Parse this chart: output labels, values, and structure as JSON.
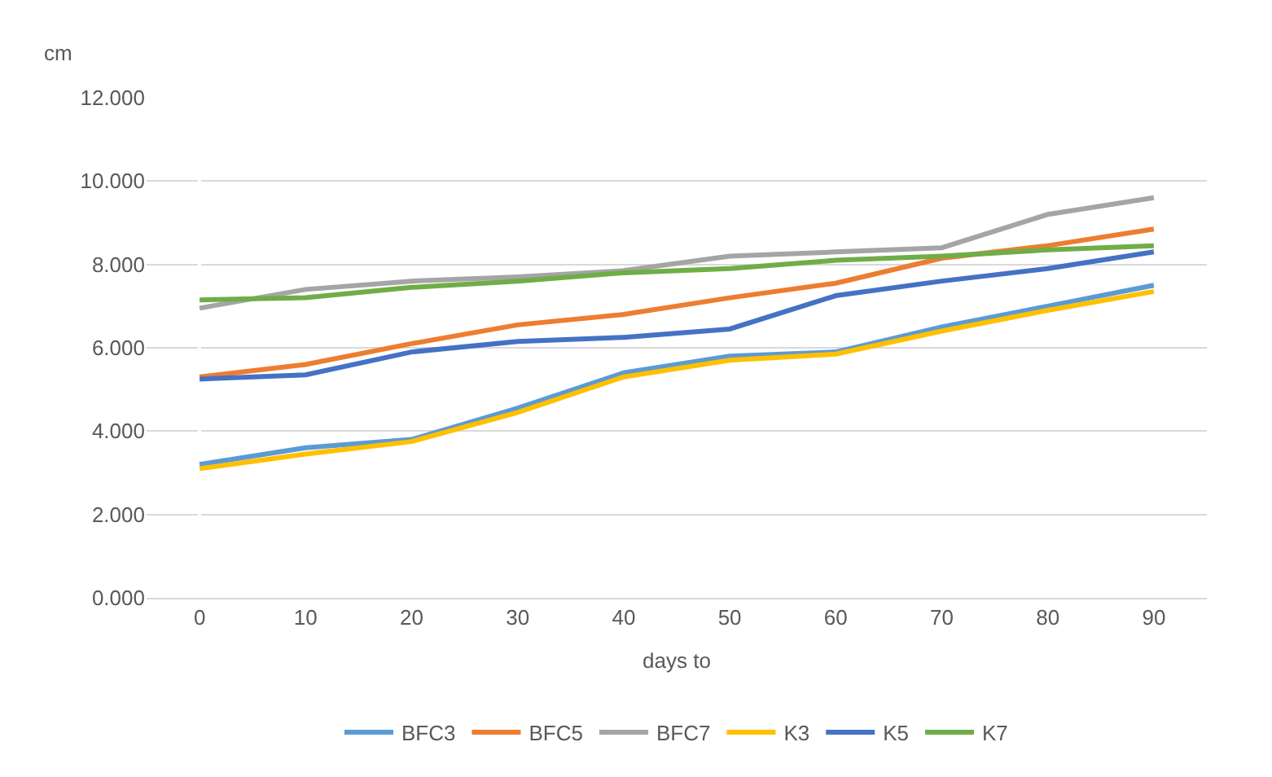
{
  "chart_data": {
    "type": "line",
    "ylabel": "cm",
    "xlabel": "days to",
    "categories": [
      "0",
      "10",
      "20",
      "30",
      "40",
      "50",
      "60",
      "70",
      "80",
      "90"
    ],
    "series": [
      {
        "name": "BFC3",
        "color": "#5b9bd5",
        "values": [
          3.2,
          3.6,
          3.8,
          4.55,
          5.4,
          5.8,
          5.9,
          6.5,
          7.0,
          7.5
        ]
      },
      {
        "name": "BFC5",
        "color": "#ed7d31",
        "values": [
          5.3,
          5.6,
          6.1,
          6.55,
          6.8,
          7.2,
          7.55,
          8.15,
          8.45,
          8.85
        ]
      },
      {
        "name": "BFC7",
        "color": "#a5a5a5",
        "values": [
          6.95,
          7.4,
          7.6,
          7.7,
          7.85,
          8.2,
          8.3,
          8.4,
          9.2,
          9.6
        ]
      },
      {
        "name": "K3",
        "color": "#ffc000",
        "values": [
          3.1,
          3.45,
          3.75,
          4.45,
          5.3,
          5.7,
          5.85,
          6.4,
          6.9,
          7.35
        ]
      },
      {
        "name": "K5",
        "color": "#4472c4",
        "values": [
          5.25,
          5.35,
          5.9,
          6.15,
          6.25,
          6.45,
          7.25,
          7.6,
          7.9,
          8.3
        ]
      },
      {
        "name": "K7",
        "color": "#70ad47",
        "values": [
          7.15,
          7.2,
          7.45,
          7.6,
          7.8,
          7.9,
          8.1,
          8.2,
          8.35,
          8.45
        ]
      }
    ],
    "ylim": [
      0,
      12
    ],
    "yticks": [
      {
        "value": 0,
        "label": "0.000"
      },
      {
        "value": 2,
        "label": "2.000"
      },
      {
        "value": 4,
        "label": "4.000"
      },
      {
        "value": 6,
        "label": "6.000"
      },
      {
        "value": 8,
        "label": "8.000"
      },
      {
        "value": 10,
        "label": "10.000"
      },
      {
        "value": 12,
        "label": "12.000"
      }
    ],
    "grid": "y",
    "legend": "bottom",
    "marker": "none",
    "line_style": "solid"
  }
}
